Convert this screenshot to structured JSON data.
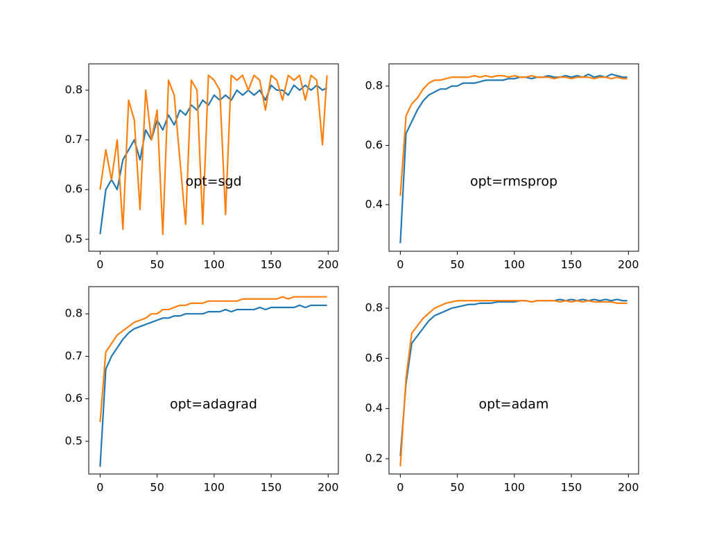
{
  "chart_data": [
    {
      "type": "line",
      "annotation": "opt=sgd",
      "x": [
        0,
        5,
        10,
        15,
        20,
        25,
        30,
        35,
        40,
        45,
        50,
        55,
        60,
        65,
        70,
        75,
        80,
        85,
        90,
        95,
        100,
        105,
        110,
        115,
        120,
        125,
        130,
        135,
        140,
        145,
        150,
        155,
        160,
        165,
        170,
        175,
        180,
        185,
        190,
        195,
        199
      ],
      "series": [
        {
          "color": "#1f77b4",
          "values": [
            0.51,
            0.6,
            0.62,
            0.6,
            0.66,
            0.68,
            0.7,
            0.66,
            0.72,
            0.7,
            0.74,
            0.72,
            0.75,
            0.73,
            0.76,
            0.75,
            0.77,
            0.76,
            0.78,
            0.77,
            0.79,
            0.78,
            0.79,
            0.78,
            0.8,
            0.79,
            0.8,
            0.79,
            0.8,
            0.78,
            0.81,
            0.8,
            0.8,
            0.79,
            0.81,
            0.8,
            0.81,
            0.8,
            0.81,
            0.8,
            0.805
          ]
        },
        {
          "color": "#ff7f0e",
          "values": [
            0.6,
            0.68,
            0.62,
            0.7,
            0.52,
            0.78,
            0.74,
            0.56,
            0.8,
            0.7,
            0.76,
            0.51,
            0.82,
            0.79,
            0.66,
            0.53,
            0.82,
            0.8,
            0.53,
            0.83,
            0.82,
            0.8,
            0.55,
            0.83,
            0.82,
            0.83,
            0.8,
            0.83,
            0.82,
            0.76,
            0.83,
            0.82,
            0.78,
            0.83,
            0.82,
            0.83,
            0.78,
            0.83,
            0.82,
            0.69,
            0.83
          ]
        }
      ],
      "xlim": [
        -9.95,
        208.95
      ],
      "ylim": [
        0.476,
        0.853
      ],
      "xticks": [
        0,
        50,
        100,
        150,
        200
      ],
      "yticks": [
        0.5,
        0.6,
        0.7,
        0.8
      ]
    },
    {
      "type": "line",
      "annotation": "opt=rmsprop",
      "x": [
        0,
        5,
        10,
        15,
        20,
        25,
        30,
        35,
        40,
        45,
        50,
        55,
        60,
        65,
        70,
        75,
        80,
        85,
        90,
        95,
        100,
        105,
        110,
        115,
        120,
        125,
        130,
        135,
        140,
        145,
        150,
        155,
        160,
        165,
        170,
        175,
        180,
        185,
        190,
        195,
        199
      ],
      "series": [
        {
          "color": "#1f77b4",
          "values": [
            0.27,
            0.64,
            0.68,
            0.72,
            0.75,
            0.77,
            0.78,
            0.79,
            0.79,
            0.8,
            0.8,
            0.81,
            0.81,
            0.81,
            0.815,
            0.82,
            0.82,
            0.82,
            0.82,
            0.825,
            0.825,
            0.83,
            0.83,
            0.825,
            0.83,
            0.83,
            0.835,
            0.83,
            0.83,
            0.835,
            0.83,
            0.835,
            0.83,
            0.84,
            0.83,
            0.835,
            0.83,
            0.84,
            0.835,
            0.83,
            0.83
          ]
        },
        {
          "color": "#ff7f0e",
          "values": [
            0.43,
            0.7,
            0.74,
            0.76,
            0.79,
            0.81,
            0.82,
            0.82,
            0.825,
            0.83,
            0.83,
            0.83,
            0.83,
            0.835,
            0.83,
            0.835,
            0.83,
            0.835,
            0.835,
            0.83,
            0.835,
            0.83,
            0.83,
            0.835,
            0.83,
            0.83,
            0.83,
            0.825,
            0.83,
            0.83,
            0.825,
            0.83,
            0.83,
            0.83,
            0.825,
            0.83,
            0.83,
            0.825,
            0.83,
            0.825,
            0.825
          ]
        }
      ],
      "xlim": [
        -9.95,
        208.95
      ],
      "ylim": [
        0.243,
        0.875
      ],
      "xticks": [
        0,
        50,
        100,
        150,
        200
      ],
      "yticks": [
        0.4,
        0.6,
        0.8
      ]
    },
    {
      "type": "line",
      "annotation": "opt=adagrad",
      "x": [
        0,
        5,
        10,
        15,
        20,
        25,
        30,
        35,
        40,
        45,
        50,
        55,
        60,
        65,
        70,
        75,
        80,
        85,
        90,
        95,
        100,
        105,
        110,
        115,
        120,
        125,
        130,
        135,
        140,
        145,
        150,
        155,
        160,
        165,
        170,
        175,
        180,
        185,
        190,
        195,
        199
      ],
      "series": [
        {
          "color": "#1f77b4",
          "values": [
            0.44,
            0.67,
            0.7,
            0.72,
            0.74,
            0.755,
            0.765,
            0.77,
            0.775,
            0.78,
            0.785,
            0.79,
            0.79,
            0.795,
            0.795,
            0.8,
            0.8,
            0.8,
            0.8,
            0.805,
            0.805,
            0.805,
            0.81,
            0.805,
            0.81,
            0.81,
            0.81,
            0.81,
            0.815,
            0.81,
            0.815,
            0.815,
            0.815,
            0.815,
            0.815,
            0.82,
            0.815,
            0.82,
            0.82,
            0.82,
            0.82
          ]
        },
        {
          "color": "#ff7f0e",
          "values": [
            0.545,
            0.71,
            0.73,
            0.75,
            0.76,
            0.77,
            0.78,
            0.785,
            0.79,
            0.8,
            0.8,
            0.81,
            0.81,
            0.815,
            0.82,
            0.82,
            0.825,
            0.825,
            0.825,
            0.83,
            0.83,
            0.83,
            0.83,
            0.83,
            0.83,
            0.835,
            0.835,
            0.835,
            0.835,
            0.835,
            0.835,
            0.835,
            0.84,
            0.835,
            0.84,
            0.84,
            0.84,
            0.84,
            0.84,
            0.84,
            0.84
          ]
        }
      ],
      "xlim": [
        -9.95,
        208.95
      ],
      "ylim": [
        0.423,
        0.864
      ],
      "xticks": [
        0,
        50,
        100,
        150,
        200
      ],
      "yticks": [
        0.5,
        0.6,
        0.7,
        0.8
      ]
    },
    {
      "type": "line",
      "annotation": "opt=adam",
      "x": [
        0,
        5,
        10,
        15,
        20,
        25,
        30,
        35,
        40,
        45,
        50,
        55,
        60,
        65,
        70,
        75,
        80,
        85,
        90,
        95,
        100,
        105,
        110,
        115,
        120,
        125,
        130,
        135,
        140,
        145,
        150,
        155,
        160,
        165,
        170,
        175,
        180,
        185,
        190,
        195,
        199
      ],
      "series": [
        {
          "color": "#1f77b4",
          "values": [
            0.21,
            0.5,
            0.66,
            0.69,
            0.72,
            0.75,
            0.77,
            0.78,
            0.79,
            0.8,
            0.805,
            0.81,
            0.815,
            0.815,
            0.82,
            0.82,
            0.82,
            0.825,
            0.825,
            0.825,
            0.825,
            0.83,
            0.83,
            0.825,
            0.83,
            0.83,
            0.83,
            0.83,
            0.835,
            0.83,
            0.835,
            0.83,
            0.835,
            0.83,
            0.835,
            0.83,
            0.835,
            0.83,
            0.835,
            0.83,
            0.83
          ]
        },
        {
          "color": "#ff7f0e",
          "values": [
            0.17,
            0.52,
            0.7,
            0.73,
            0.76,
            0.78,
            0.8,
            0.81,
            0.82,
            0.825,
            0.83,
            0.83,
            0.83,
            0.83,
            0.83,
            0.83,
            0.83,
            0.83,
            0.83,
            0.83,
            0.83,
            0.83,
            0.83,
            0.825,
            0.83,
            0.83,
            0.83,
            0.83,
            0.825,
            0.83,
            0.825,
            0.83,
            0.825,
            0.83,
            0.825,
            0.825,
            0.825,
            0.825,
            0.82,
            0.82,
            0.82
          ]
        }
      ],
      "xlim": [
        -9.95,
        208.95
      ],
      "ylim": [
        0.139,
        0.886
      ],
      "xticks": [
        0,
        50,
        100,
        150,
        200
      ],
      "yticks": [
        0.2,
        0.4,
        0.6,
        0.8
      ]
    }
  ]
}
